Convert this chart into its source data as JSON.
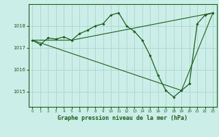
{
  "title": "Graphe pression niveau de la mer (hPa)",
  "bg_color": "#cceee8",
  "grid_color": "#aad4ce",
  "line_color": "#1a5c1a",
  "marker_color": "#1a5c1a",
  "xlim": [
    -0.5,
    23.5
  ],
  "ylim": [
    1014.3,
    1019.0
  ],
  "yticks": [
    1015,
    1016,
    1017,
    1018
  ],
  "xticks": [
    0,
    1,
    2,
    3,
    4,
    5,
    6,
    7,
    8,
    9,
    10,
    11,
    12,
    13,
    14,
    15,
    16,
    17,
    18,
    19,
    20,
    21,
    22,
    23
  ],
  "series_detail": {
    "x": [
      0,
      1,
      2,
      3,
      4,
      5,
      6,
      7,
      8,
      9,
      10,
      11,
      12,
      13,
      14,
      15,
      16,
      17,
      18,
      19,
      20,
      21,
      22,
      23
    ],
    "y": [
      1017.35,
      1017.15,
      1017.45,
      1017.4,
      1017.5,
      1017.35,
      1017.65,
      1017.8,
      1018.0,
      1018.1,
      1018.5,
      1018.6,
      1018.0,
      1017.75,
      1017.35,
      1016.65,
      1015.75,
      1015.05,
      1014.75,
      1015.05,
      1015.35,
      1018.1,
      1018.5,
      1018.6
    ]
  },
  "series_tri1": {
    "x": [
      0,
      5,
      23
    ],
    "y": [
      1017.35,
      1017.35,
      1018.6
    ]
  },
  "series_tri2": {
    "x": [
      0,
      19,
      23
    ],
    "y": [
      1017.35,
      1015.05,
      1018.6
    ]
  }
}
